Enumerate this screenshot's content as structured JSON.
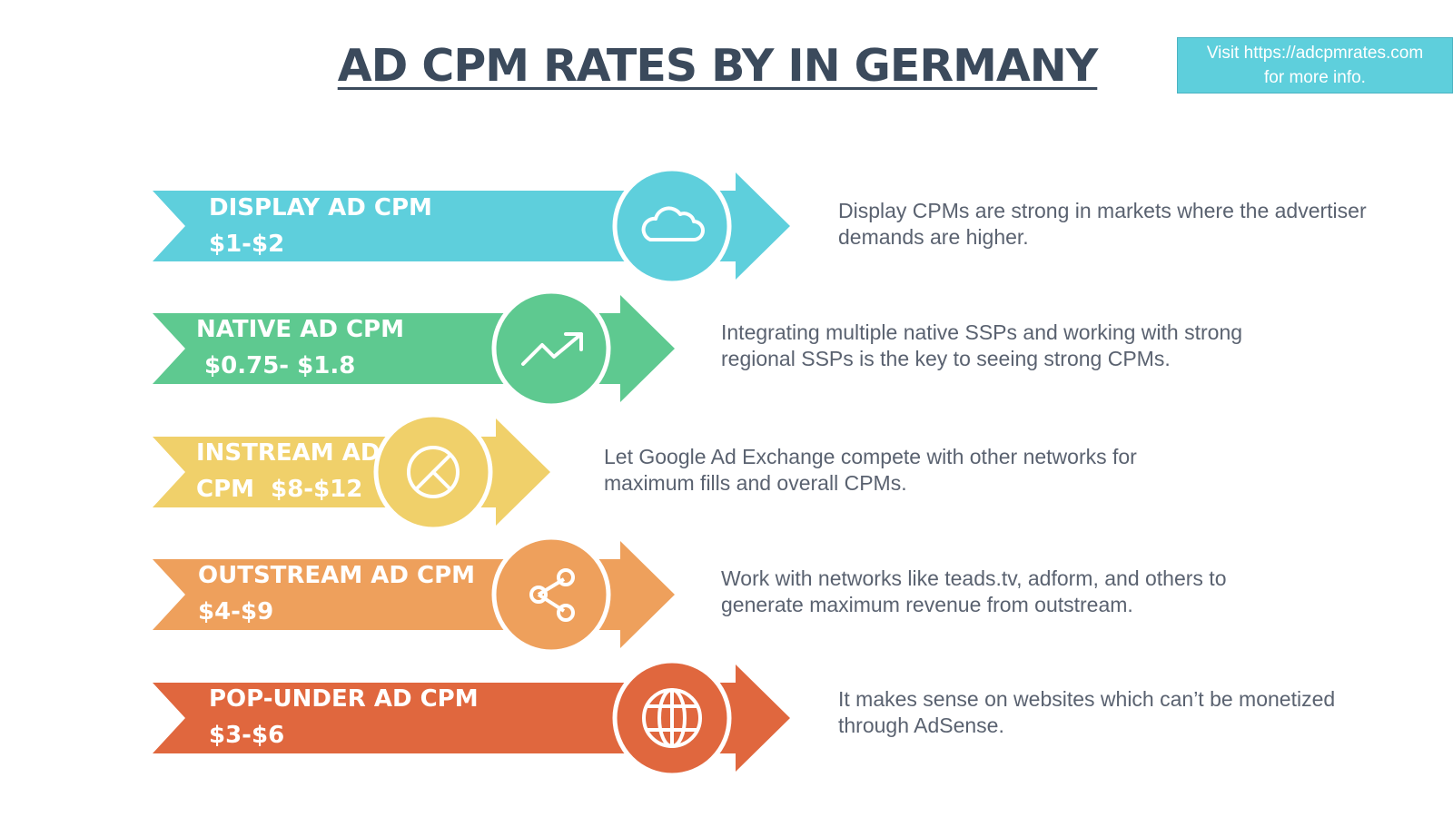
{
  "title": "AD CPM RATES BY IN GERMANY",
  "visit": {
    "line1": "Visit https://adcpmrates.com",
    "line2": "for more info."
  },
  "rows": [
    {
      "label_line1": "DISPLAY AD CPM",
      "label_line2": "$1-$2",
      "icon": "cloud-icon",
      "color": "#5ecfdc",
      "desc_line1": "Display CPMs are strong in markets where the advertiser",
      "desc_line2": "demands are higher."
    },
    {
      "label_line1": "NATIVE AD CPM",
      "label_line2": " $0.75- $1.8",
      "icon": "trending-up-icon",
      "color": "#5ec990",
      "desc_line1": "Integrating multiple native SSPs and working with strong",
      "desc_line2": "regional SSPs is the key to seeing strong CPMs."
    },
    {
      "label_line1": "INSTREAM AD",
      "label_line2": "CPM  $8-$12",
      "icon": "pie-chart-icon",
      "color": "#f0d06a",
      "desc_line1": "Let Google Ad Exchange compete with other networks for",
      "desc_line2": "maximum fills and overall CPMs."
    },
    {
      "label_line1": "OUTSTREAM AD CPM",
      "label_line2": "$4-$9",
      "icon": "share-icon",
      "color": "#eea05c",
      "desc_line1": "Work with networks like teads.tv, adform, and others to",
      "desc_line2": "generate maximum revenue from outstream."
    },
    {
      "label_line1": "POP-UNDER AD CPM",
      "label_line2": "$3-$6",
      "icon": "globe-icon",
      "color": "#e0673e",
      "desc_line1": "It makes sense on websites which can’t be monetized",
      "desc_line2": "through AdSense."
    }
  ]
}
